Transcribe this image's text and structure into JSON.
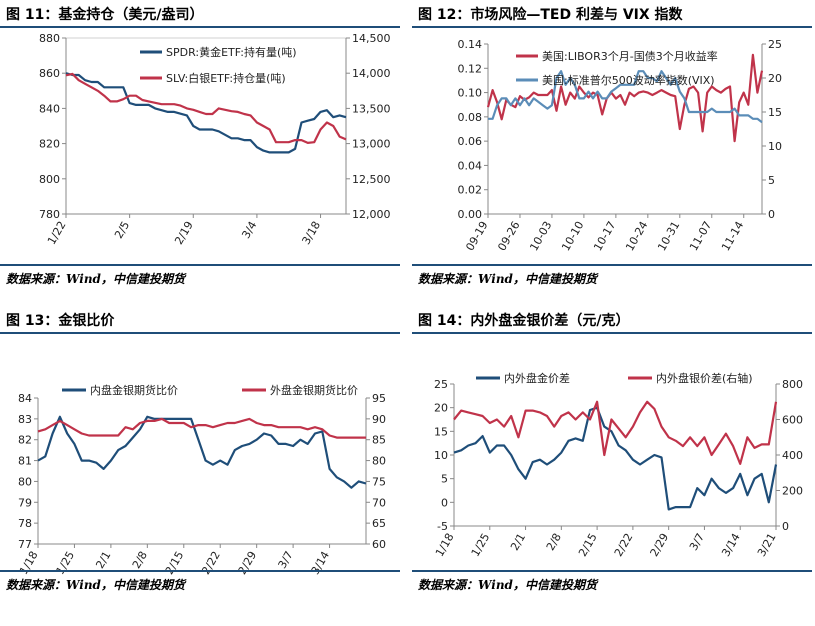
{
  "figures": [
    {
      "title": "图 11：基金持仓（美元/盎司）",
      "source": "数据来源：Wind，中信建投期货",
      "chart_data": {
        "type": "line",
        "x": [
          "1/22",
          "1/23",
          "1/24",
          "1/25",
          "1/26",
          "1/29",
          "1/30",
          "1/31",
          "2/1",
          "2/2",
          "2/5",
          "2/6",
          "2/7",
          "2/8",
          "2/9",
          "2/12",
          "2/13",
          "2/14",
          "2/15",
          "2/16",
          "2/19",
          "2/20",
          "2/21",
          "2/22",
          "2/23",
          "2/26",
          "2/27",
          "2/28",
          "2/29",
          "3/1",
          "3/4",
          "3/5",
          "3/6",
          "3/7",
          "3/8",
          "3/11",
          "3/12",
          "3/13",
          "3/14",
          "3/15",
          "3/18",
          "3/19",
          "3/20",
          "3/21",
          "3/22"
        ],
        "xticks": [
          "1/22",
          "2/5",
          "2/19",
          "3/4",
          "3/18"
        ],
        "ylim": [
          780,
          880
        ],
        "yticks": [
          780,
          800,
          820,
          840,
          860,
          880
        ],
        "y2lim": [
          12000,
          14500
        ],
        "y2ticks": [
          "12,000",
          "12,500",
          "13,000",
          "13,500",
          "14,000",
          "14,500"
        ],
        "legend_position": "top-right",
        "series": [
          {
            "name": "SPDR:黄金ETF:持有量(吨)",
            "axis": "left",
            "color": "#1f4e79",
            "values": [
              860,
              859,
              859,
              856,
              855,
              855,
              852,
              852,
              852,
              852,
              843,
              842,
              842,
              842,
              840,
              839,
              838,
              838,
              837,
              836,
              830,
              828,
              828,
              828,
              827,
              825,
              823,
              823,
              822,
              822,
              818,
              816,
              815,
              815,
              815,
              815,
              817,
              832,
              833,
              834,
              838,
              839,
              835,
              836,
              835
            ]
          },
          {
            "name": "SLV:白银ETF:持仓量(吨)",
            "axis": "right",
            "color": "#c0334a",
            "values": [
              13970,
              13990,
              13900,
              13850,
              13800,
              13750,
              13680,
              13600,
              13600,
              13630,
              13680,
              13680,
              13620,
              13600,
              13580,
              13560,
              13560,
              13560,
              13540,
              13500,
              13480,
              13450,
              13420,
              13420,
              13500,
              13480,
              13460,
              13450,
              13420,
              13400,
              13300,
              13250,
              13200,
              13020,
              13020,
              13020,
              13050,
              13050,
              13010,
              13020,
              13200,
              13300,
              13250,
              13100,
              13060
            ]
          }
        ]
      }
    },
    {
      "title": "图 12：市场风险—TED 利差与 VIX 指数",
      "source": "数据来源：Wind，中信建投期货",
      "chart_data": {
        "type": "line",
        "x": [
          "09-19",
          "09-20",
          "09-21",
          "09-22",
          "09-23",
          "09-24",
          "09-25",
          "09-26",
          "09-27",
          "09-28",
          "09-29",
          "09-30",
          "10-01",
          "10-02",
          "10-03",
          "10-04",
          "10-05",
          "10-06",
          "10-07",
          "10-08",
          "10-09",
          "10-10",
          "10-11",
          "10-12",
          "10-13",
          "10-14",
          "10-15",
          "10-16",
          "10-17",
          "10-18",
          "10-19",
          "10-20",
          "10-21",
          "10-22",
          "10-23",
          "10-24",
          "10-25",
          "10-26",
          "10-27",
          "10-28",
          "10-29",
          "10-30",
          "10-31",
          "11-01",
          "11-02",
          "11-03",
          "11-04",
          "11-05",
          "11-06",
          "11-07",
          "11-08",
          "11-09",
          "11-10",
          "11-11",
          "11-12",
          "11-13",
          "11-14",
          "11-15",
          "11-16",
          "11-17",
          "11-18"
        ],
        "xticks": [
          "09-19",
          "09-26",
          "10-03",
          "10-10",
          "10-17",
          "10-24",
          "10-31",
          "11-07",
          "11-14"
        ],
        "ylim": [
          0,
          0.14
        ],
        "yticks": [
          "0.00",
          "0.02",
          "0.04",
          "0.06",
          "0.08",
          "0.10",
          "0.12",
          "0.14"
        ],
        "y2lim": [
          0,
          25
        ],
        "y2ticks": [
          0,
          5,
          10,
          15,
          20,
          25
        ],
        "legend_position": "top-left",
        "series": [
          {
            "name": "美国:LIBOR3个月-国债3个月收益率",
            "axis": "left",
            "color": "#c0334a",
            "values": [
              0.088,
              0.102,
              0.092,
              0.078,
              0.094,
              0.09,
              0.088,
              0.097,
              0.094,
              0.096,
              0.1,
              0.098,
              0.098,
              0.098,
              0.102,
              0.085,
              0.105,
              0.09,
              0.1,
              0.095,
              0.105,
              0.1,
              0.096,
              0.1,
              0.098,
              0.082,
              0.095,
              0.1,
              0.095,
              0.098,
              0.09,
              0.1,
              0.097,
              0.1,
              0.101,
              0.1,
              0.098,
              0.1,
              0.102,
              0.1,
              0.098,
              0.097,
              0.07,
              0.09,
              0.103,
              0.105,
              0.1,
              0.068,
              0.1,
              0.105,
              0.102,
              0.1,
              0.103,
              0.105,
              0.06,
              0.092,
              0.1,
              0.09,
              0.131,
              0.1,
              0.118
            ]
          },
          {
            "name": "美国:标准普尔500波动率指数(VIX)",
            "axis": "right",
            "color": "#5b8db8",
            "values": [
              14,
              14,
              16,
              17,
              17,
              16,
              17,
              16,
              17,
              16,
              17,
              16.5,
              16,
              15.5,
              16,
              20,
              21,
              19,
              20,
              19,
              17,
              17,
              18,
              17,
              18,
              17,
              17,
              18,
              18.5,
              19,
              19,
              19,
              19,
              21,
              21,
              20,
              20,
              19.5,
              21,
              20,
              19,
              20,
              18,
              17,
              15,
              15,
              15,
              15,
              15,
              15.5,
              15,
              15,
              15,
              15,
              15.5,
              14.5,
              14.5,
              14.5,
              14,
              14,
              13.5
            ]
          }
        ]
      }
    },
    {
      "title": "图 13：金银比价",
      "source": "数据来源：Wind，中信建投期货",
      "chart_data": {
        "type": "line",
        "x": [
          "1/18",
          "1/19",
          "1/22",
          "1/23",
          "1/24",
          "1/25",
          "1/26",
          "1/29",
          "1/30",
          "1/31",
          "2/1",
          "2/2",
          "2/5",
          "2/6",
          "2/7",
          "2/8",
          "2/9",
          "2/12",
          "2/13",
          "2/14",
          "2/15",
          "2/16",
          "2/19",
          "2/20",
          "2/21",
          "2/22",
          "2/23",
          "2/26",
          "2/27",
          "2/28",
          "2/29",
          "3/1",
          "3/4",
          "3/5",
          "3/6",
          "3/7",
          "3/8",
          "3/11",
          "3/12",
          "3/13",
          "3/14",
          "3/15",
          "3/18",
          "3/19",
          "3/20",
          "3/21"
        ],
        "xticks": [
          "1/18",
          "1/25",
          "2/1",
          "2/8",
          "2/15",
          "2/22",
          "2/29",
          "3/7",
          "3/14"
        ],
        "ylim": [
          77,
          84
        ],
        "yticks": [
          77,
          78,
          79,
          80,
          81,
          82,
          83,
          84
        ],
        "y2lim": [
          60,
          95
        ],
        "y2ticks": [
          60,
          65,
          70,
          75,
          80,
          85,
          90,
          95
        ],
        "legend_position": "top-center",
        "series": [
          {
            "name": "内盘金银期货比价",
            "axis": "left",
            "color": "#1f4e79",
            "values": [
              81,
              81.2,
              82.3,
              83.1,
              82.3,
              81.8,
              81,
              81,
              80.9,
              80.6,
              81,
              81.5,
              81.7,
              82.1,
              82.5,
              83.1,
              83,
              83,
              83,
              83,
              83,
              83,
              82,
              81,
              80.8,
              81,
              80.8,
              81.5,
              81.7,
              81.8,
              82,
              82.3,
              82.2,
              81.8,
              81.8,
              81.7,
              82,
              81.8,
              82.3,
              82.4,
              80.6,
              80.2,
              80,
              79.7,
              80,
              79.9
            ]
          },
          {
            "name": "外盘金银期货比价",
            "axis": "right",
            "color": "#c0334a",
            "values": [
              87,
              87.5,
              88.5,
              89.5,
              88.5,
              87.5,
              86.5,
              86,
              86,
              86,
              86,
              86,
              88,
              87.5,
              89,
              89.5,
              89.5,
              90,
              89,
              89,
              89,
              88,
              88.5,
              88.5,
              88,
              88.5,
              89,
              89,
              89.5,
              90,
              89,
              88.5,
              88.5,
              88,
              88,
              88,
              88,
              87.5,
              88,
              87.5,
              86,
              85.5,
              85.5,
              85.5,
              85.5,
              85.5
            ]
          }
        ]
      }
    },
    {
      "title": "图 14：内外盘金银价差（元/克）",
      "source": "数据来源：Wind，中信建投期货",
      "chart_data": {
        "type": "line",
        "x": [
          "1/18",
          "1/19",
          "1/22",
          "1/23",
          "1/24",
          "1/25",
          "1/26",
          "1/29",
          "1/30",
          "1/31",
          "2/1",
          "2/2",
          "2/5",
          "2/6",
          "2/7",
          "2/8",
          "2/9",
          "2/12",
          "2/13",
          "2/14",
          "2/15",
          "2/16",
          "2/19",
          "2/20",
          "2/21",
          "2/22",
          "2/23",
          "2/26",
          "2/27",
          "2/28",
          "2/29",
          "3/1",
          "3/4",
          "3/5",
          "3/6",
          "3/7",
          "3/8",
          "3/11",
          "3/12",
          "3/13",
          "3/14",
          "3/15",
          "3/18",
          "3/19",
          "3/20",
          "3/21"
        ],
        "xticks": [
          "1/18",
          "1/25",
          "2/1",
          "2/8",
          "2/15",
          "2/22",
          "2/29",
          "3/7",
          "3/14",
          "3/21"
        ],
        "ylim": [
          -5,
          25
        ],
        "yticks": [
          -5,
          0,
          5,
          10,
          15,
          20,
          25
        ],
        "y2lim": [
          0,
          800
        ],
        "y2ticks": [
          0,
          200,
          400,
          600,
          800
        ],
        "legend_position": "top-center",
        "series": [
          {
            "name": "内外盘金价差",
            "axis": "left",
            "color": "#1f4e79",
            "values": [
              10.5,
              11,
              12,
              12.5,
              14,
              10.5,
              12,
              12,
              10,
              7,
              5,
              8.5,
              9,
              8,
              9,
              10.5,
              13,
              13.5,
              13,
              19.5,
              20,
              16,
              15,
              12,
              11,
              9,
              8,
              9,
              10,
              9.5,
              -1.5,
              -1,
              -1,
              -1,
              3,
              1.5,
              5,
              3,
              2,
              3,
              6,
              1.5,
              5,
              6,
              0,
              8
            ]
          },
          {
            "name": "内外盘银价差(右轴)",
            "axis": "right",
            "color": "#c0334a",
            "values": [
              600,
              650,
              640,
              630,
              620,
              580,
              600,
              560,
              620,
              500,
              650,
              650,
              640,
              620,
              560,
              620,
              640,
              600,
              640,
              600,
              700,
              400,
              600,
              550,
              500,
              560,
              640,
              700,
              660,
              560,
              500,
              480,
              450,
              500,
              450,
              500,
              400,
              460,
              520,
              450,
              350,
              500,
              440,
              460,
              460,
              700
            ]
          }
        ]
      }
    }
  ]
}
